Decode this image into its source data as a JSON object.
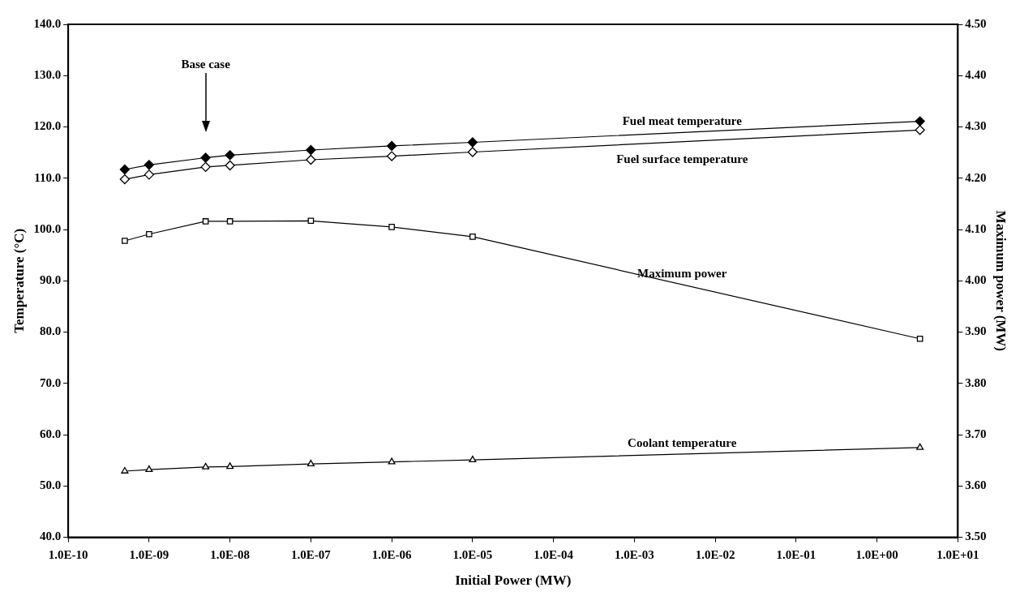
{
  "chart_data": {
    "type": "line",
    "xlabel": "Initial Power (MW)",
    "ylabel": "Temperature (°C)",
    "y2label": "Maximum power (MW)",
    "log": "x",
    "grid": false,
    "legend": false,
    "line_style": "solid",
    "x": [
      5e-10,
      1e-09,
      5e-09,
      1e-08,
      1e-07,
      1e-06,
      1e-05,
      3.4
    ],
    "xlim": [
      1e-10,
      10
    ],
    "xticks": [
      {
        "value": 1e-10,
        "label": "1.0E-10"
      },
      {
        "value": 1e-09,
        "label": "1.0E-09"
      },
      {
        "value": 1e-08,
        "label": "1.0E-08"
      },
      {
        "value": 1e-07,
        "label": "1.0E-07"
      },
      {
        "value": 1e-06,
        "label": "1.0E-06"
      },
      {
        "value": 1e-05,
        "label": "1.0E-05"
      },
      {
        "value": 0.0001,
        "label": "1.0E-04"
      },
      {
        "value": 0.001,
        "label": "1.0E-03"
      },
      {
        "value": 0.01,
        "label": "1.0E-02"
      },
      {
        "value": 0.1,
        "label": "1.0E-01"
      },
      {
        "value": 1,
        "label": "1.0E+00"
      },
      {
        "value": 10,
        "label": "1.0E+01"
      }
    ],
    "ylim": [
      40,
      140
    ],
    "yticks": [
      {
        "value": 40,
        "label": "40.0"
      },
      {
        "value": 50,
        "label": "50.0"
      },
      {
        "value": 60,
        "label": "60.0"
      },
      {
        "value": 70,
        "label": "70.0"
      },
      {
        "value": 80,
        "label": "80.0"
      },
      {
        "value": 90,
        "label": "90.0"
      },
      {
        "value": 100,
        "label": "100.0"
      },
      {
        "value": 110,
        "label": "110.0"
      },
      {
        "value": 120,
        "label": "120.0"
      },
      {
        "value": 130,
        "label": "130.0"
      },
      {
        "value": 140,
        "label": "140.0"
      }
    ],
    "y2lim": [
      3.5,
      4.5
    ],
    "y2ticks": [
      {
        "value": 3.5,
        "label": "3.50"
      },
      {
        "value": 3.6,
        "label": "3.60"
      },
      {
        "value": 3.7,
        "label": "3.70"
      },
      {
        "value": 3.8,
        "label": "3.80"
      },
      {
        "value": 3.9,
        "label": "3.90"
      },
      {
        "value": 4.0,
        "label": "4.00"
      },
      {
        "value": 4.1,
        "label": "4.10"
      },
      {
        "value": 4.2,
        "label": "4.20"
      },
      {
        "value": 4.3,
        "label": "4.30"
      },
      {
        "value": 4.4,
        "label": "4.40"
      },
      {
        "value": 4.5,
        "label": "4.50"
      }
    ],
    "series": [
      {
        "name": "Fuel meat temperature",
        "color": "#000000",
        "marker": "diamond",
        "values": [
          111.7,
          112.6,
          114.0,
          114.5,
          115.5,
          116.3,
          117.0,
          121.1
        ]
      },
      {
        "name": "Fuel surface temperature",
        "color": "#000000",
        "marker": "diamond",
        "values": [
          109.8,
          110.7,
          112.2,
          112.5,
          113.6,
          114.3,
          115.1,
          119.4
        ]
      },
      {
        "name": "Maximum power",
        "color": "#000000",
        "marker": "square",
        "axis": "y2",
        "values": [
          4.078,
          4.091,
          4.116,
          4.116,
          4.117,
          4.105,
          4.086,
          3.887
        ]
      },
      {
        "name": "Coolant temperature",
        "color": "#000000",
        "marker": "triangle",
        "values": [
          52.9,
          53.2,
          53.7,
          53.8,
          54.3,
          54.7,
          55.1,
          57.5
        ]
      }
    ],
    "annotations": [
      {
        "text": "Base case",
        "x": 5e-09
      }
    ]
  }
}
